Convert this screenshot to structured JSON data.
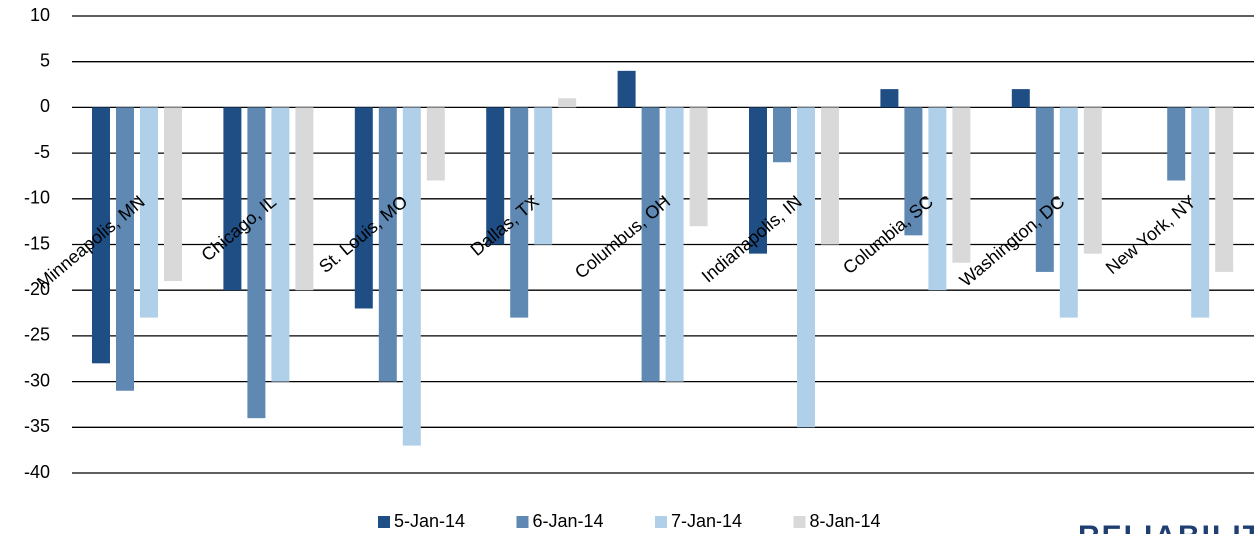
{
  "chart_data": {
    "type": "bar",
    "categories": [
      "Minneapolis, MN",
      "Chicago, IL",
      "St. Louis, MO",
      "Dallas, TX",
      "Columbus, OH",
      "Indianapolis, IN",
      "Columbia, SC",
      "Washington, DC",
      "New York, NY"
    ],
    "series": [
      {
        "name": "5-Jan-14",
        "color": "#1f4e85",
        "values": [
          -28,
          -20,
          -22,
          -15,
          4,
          -16,
          2,
          2,
          0
        ]
      },
      {
        "name": "6-Jan-14",
        "color": "#5f88b2",
        "values": [
          -31,
          -34,
          -30,
          -23,
          -30,
          -6,
          -14,
          -18,
          -8
        ]
      },
      {
        "name": "7-Jan-14",
        "color": "#b0cfe8",
        "values": [
          -23,
          -30,
          -37,
          -15,
          -30,
          -35,
          -20,
          -23,
          -23
        ]
      },
      {
        "name": "8-Jan-14",
        "color": "#d9d9d9",
        "values": [
          -19,
          -20,
          -8,
          1,
          -13,
          -15,
          -17,
          -16,
          -18
        ]
      }
    ],
    "ylim": [
      -40,
      10
    ],
    "yticks": [
      10,
      5,
      0,
      -5,
      -10,
      -15,
      -20,
      -25,
      -30,
      -35,
      -40
    ],
    "grid": true,
    "legend": "bottom",
    "logo": "RELIABILITY"
  }
}
